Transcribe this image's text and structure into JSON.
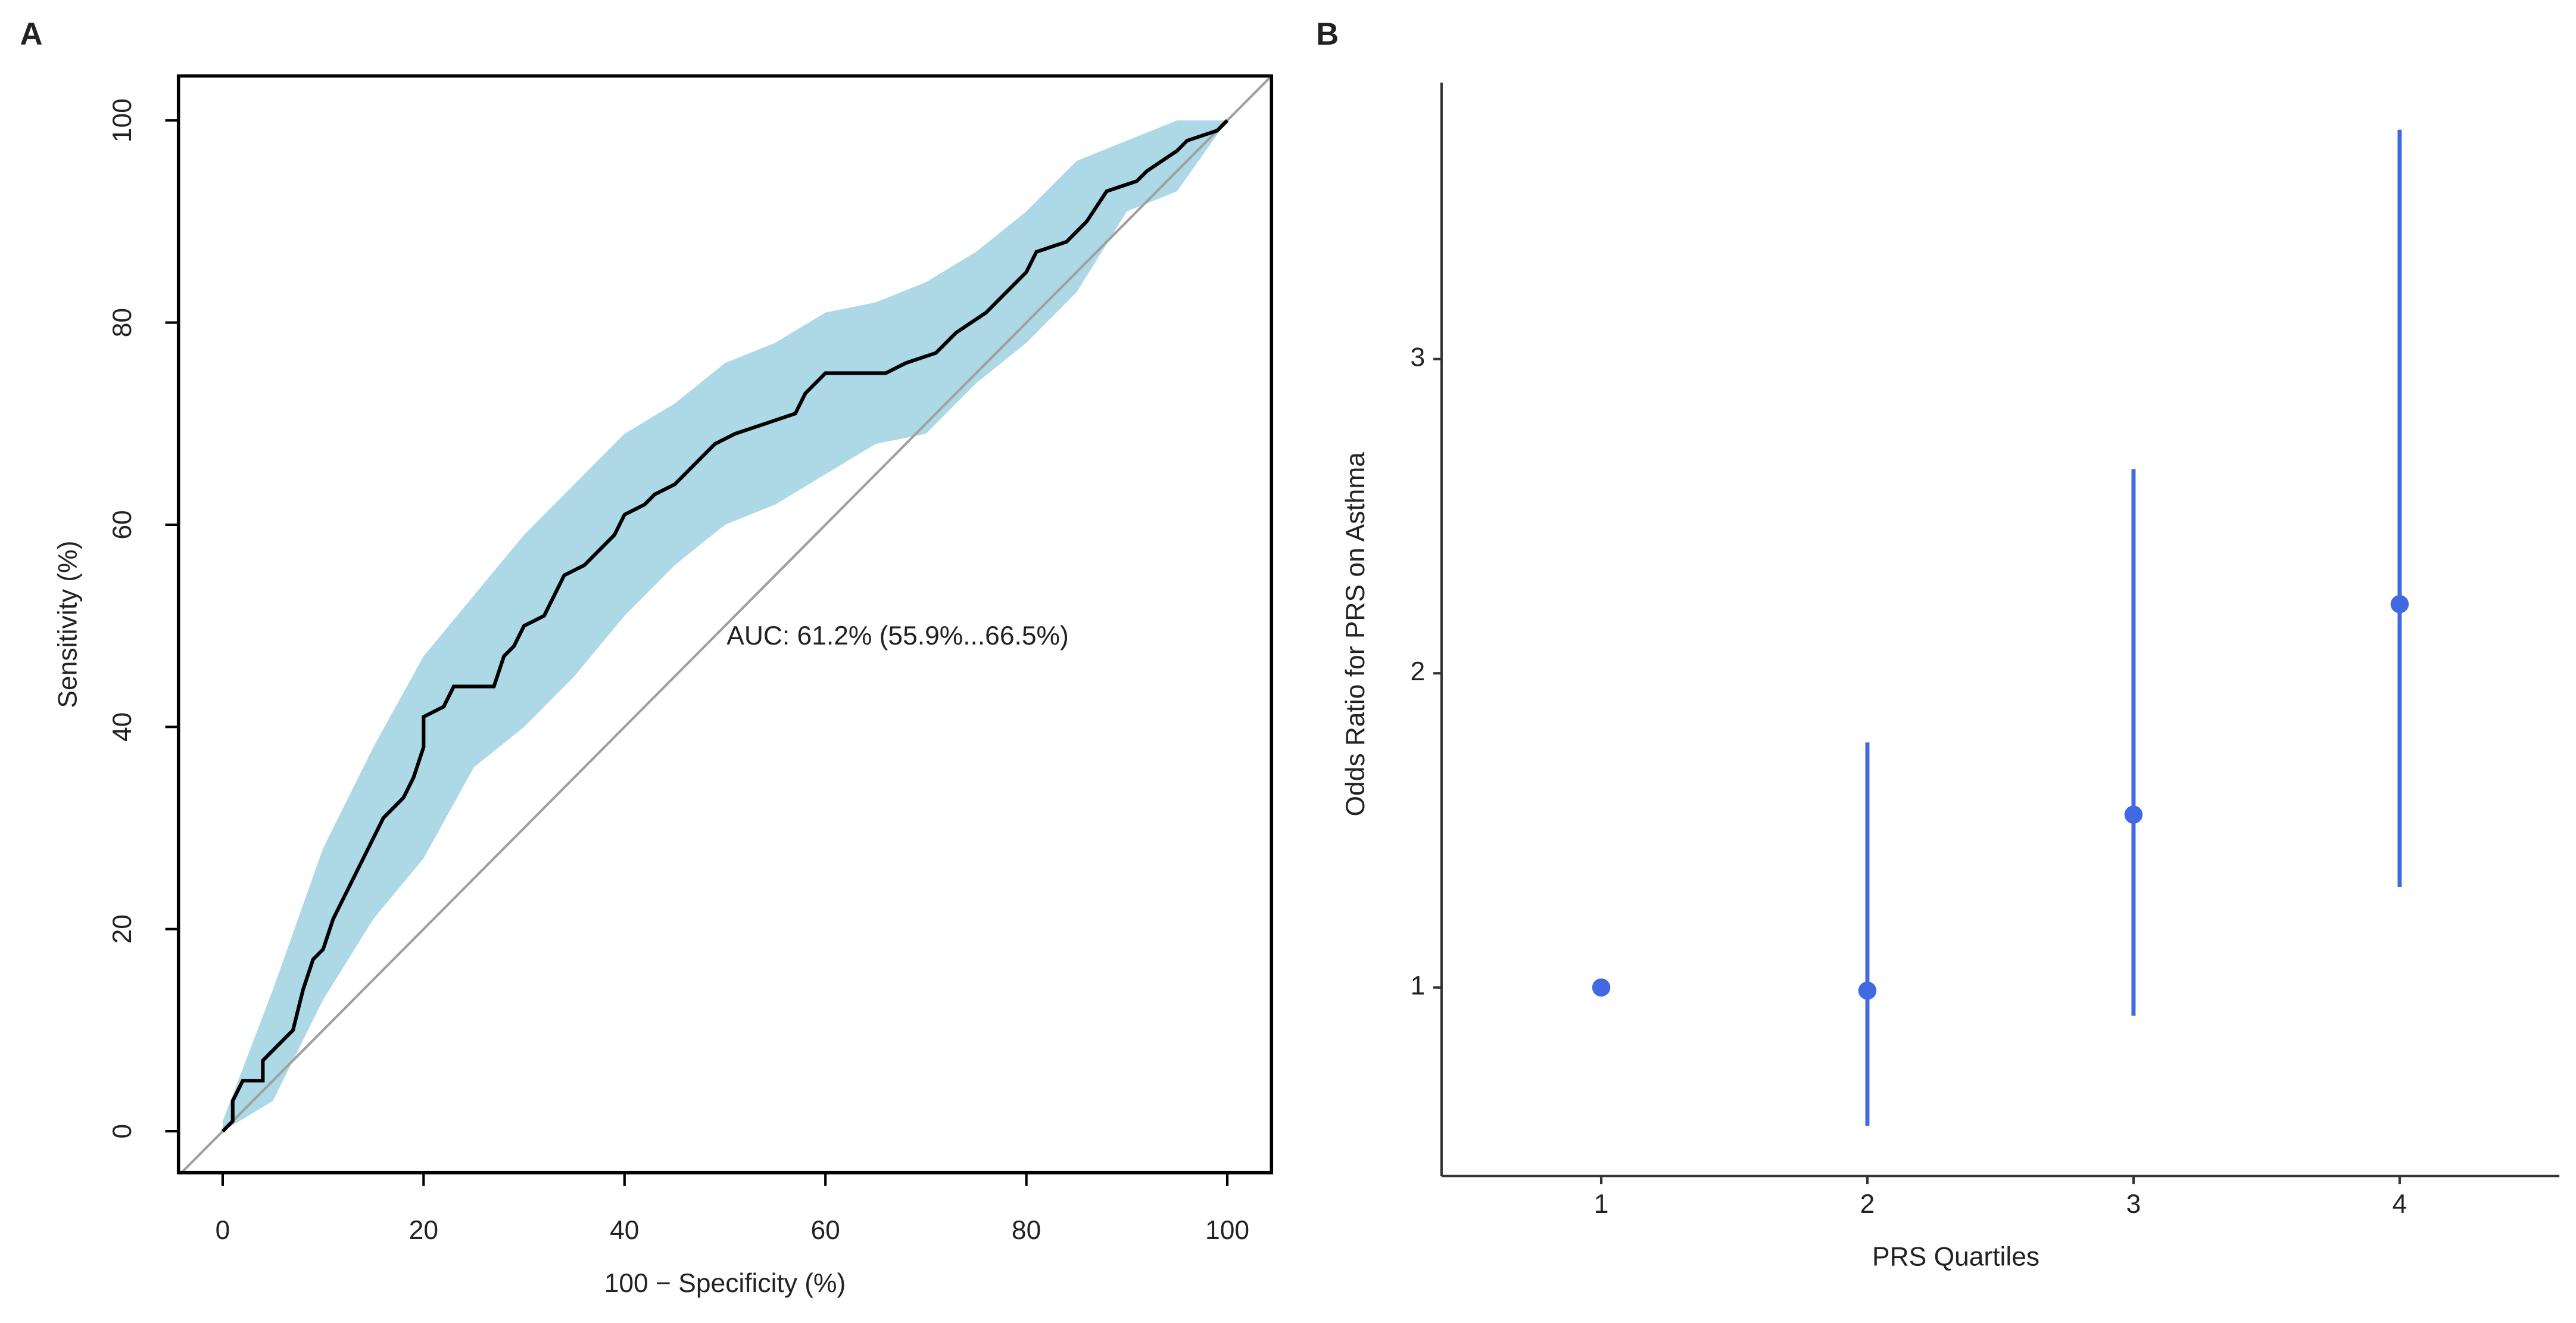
{
  "chart_data": [
    {
      "type": "roc",
      "panel": "A",
      "xlabel": "100 − Specificity (%)",
      "ylabel": "Sensitivity (%)",
      "annotation": "AUC: 61.2% (55.9%...66.5%)",
      "x": [
        0,
        1,
        1,
        2,
        4,
        4,
        5,
        6,
        7,
        8,
        9,
        10,
        11,
        12,
        13,
        14,
        15,
        16,
        18,
        19,
        20,
        20,
        22,
        23,
        27,
        28,
        29,
        30,
        32,
        33,
        34,
        36,
        37,
        39,
        40,
        42,
        43,
        45,
        47,
        49,
        51,
        54,
        57,
        58,
        60,
        66,
        68,
        71,
        73,
        76,
        78,
        80,
        81,
        84,
        86,
        88,
        91,
        92,
        95,
        96,
        99,
        100
      ],
      "values": [
        0,
        1,
        3,
        5,
        5,
        7,
        8,
        9,
        10,
        14,
        17,
        18,
        21,
        23,
        25,
        27,
        29,
        31,
        33,
        35,
        38,
        41,
        42,
        44,
        44,
        47,
        48,
        50,
        51,
        53,
        55,
        56,
        57,
        59,
        61,
        62,
        63,
        64,
        66,
        68,
        69,
        70,
        71,
        73,
        75,
        75,
        76,
        77,
        79,
        81,
        83,
        85,
        87,
        88,
        90,
        93,
        94,
        95,
        97,
        98,
        99,
        100
      ],
      "color": "#000000",
      "band": {
        "x": [
          0,
          5,
          10,
          15,
          20,
          25,
          30,
          35,
          40,
          45,
          50,
          55,
          60,
          65,
          70,
          75,
          80,
          85,
          90,
          95,
          100
        ],
        "upper": [
          1,
          14,
          28,
          38,
          47,
          53,
          59,
          64,
          69,
          72,
          76,
          78,
          81,
          82,
          84,
          87,
          91,
          96,
          98,
          100,
          100
        ],
        "lower": [
          0,
          3,
          13,
          21,
          27,
          36,
          40,
          45,
          51,
          56,
          60,
          62,
          65,
          68,
          69,
          74,
          78,
          83,
          91,
          93,
          100
        ],
        "color": "#add8e6"
      },
      "diagonal_color": "#a0a0a0",
      "xlim": [
        -4.4,
        104.4
      ],
      "ylim": [
        -4.1,
        104.4
      ],
      "xticks": [
        0,
        20,
        40,
        60,
        80,
        100
      ],
      "yticks": [
        0,
        20,
        40,
        60,
        80,
        100
      ]
    },
    {
      "type": "errorbar",
      "panel": "B",
      "xlabel": "PRS Quartiles",
      "ylabel": "Odds Ratio for PRS on Asthma",
      "categories": [
        "1",
        "2",
        "3",
        "4"
      ],
      "values": [
        1.0,
        0.99,
        1.55,
        2.22
      ],
      "lower": [
        1.0,
        0.56,
        0.91,
        1.32
      ],
      "upper": [
        1.0,
        1.78,
        2.65,
        3.73
      ],
      "color": "#4169e1",
      "ylim": [
        0.4,
        3.88
      ],
      "yticks": [
        1,
        2,
        3
      ]
    }
  ]
}
